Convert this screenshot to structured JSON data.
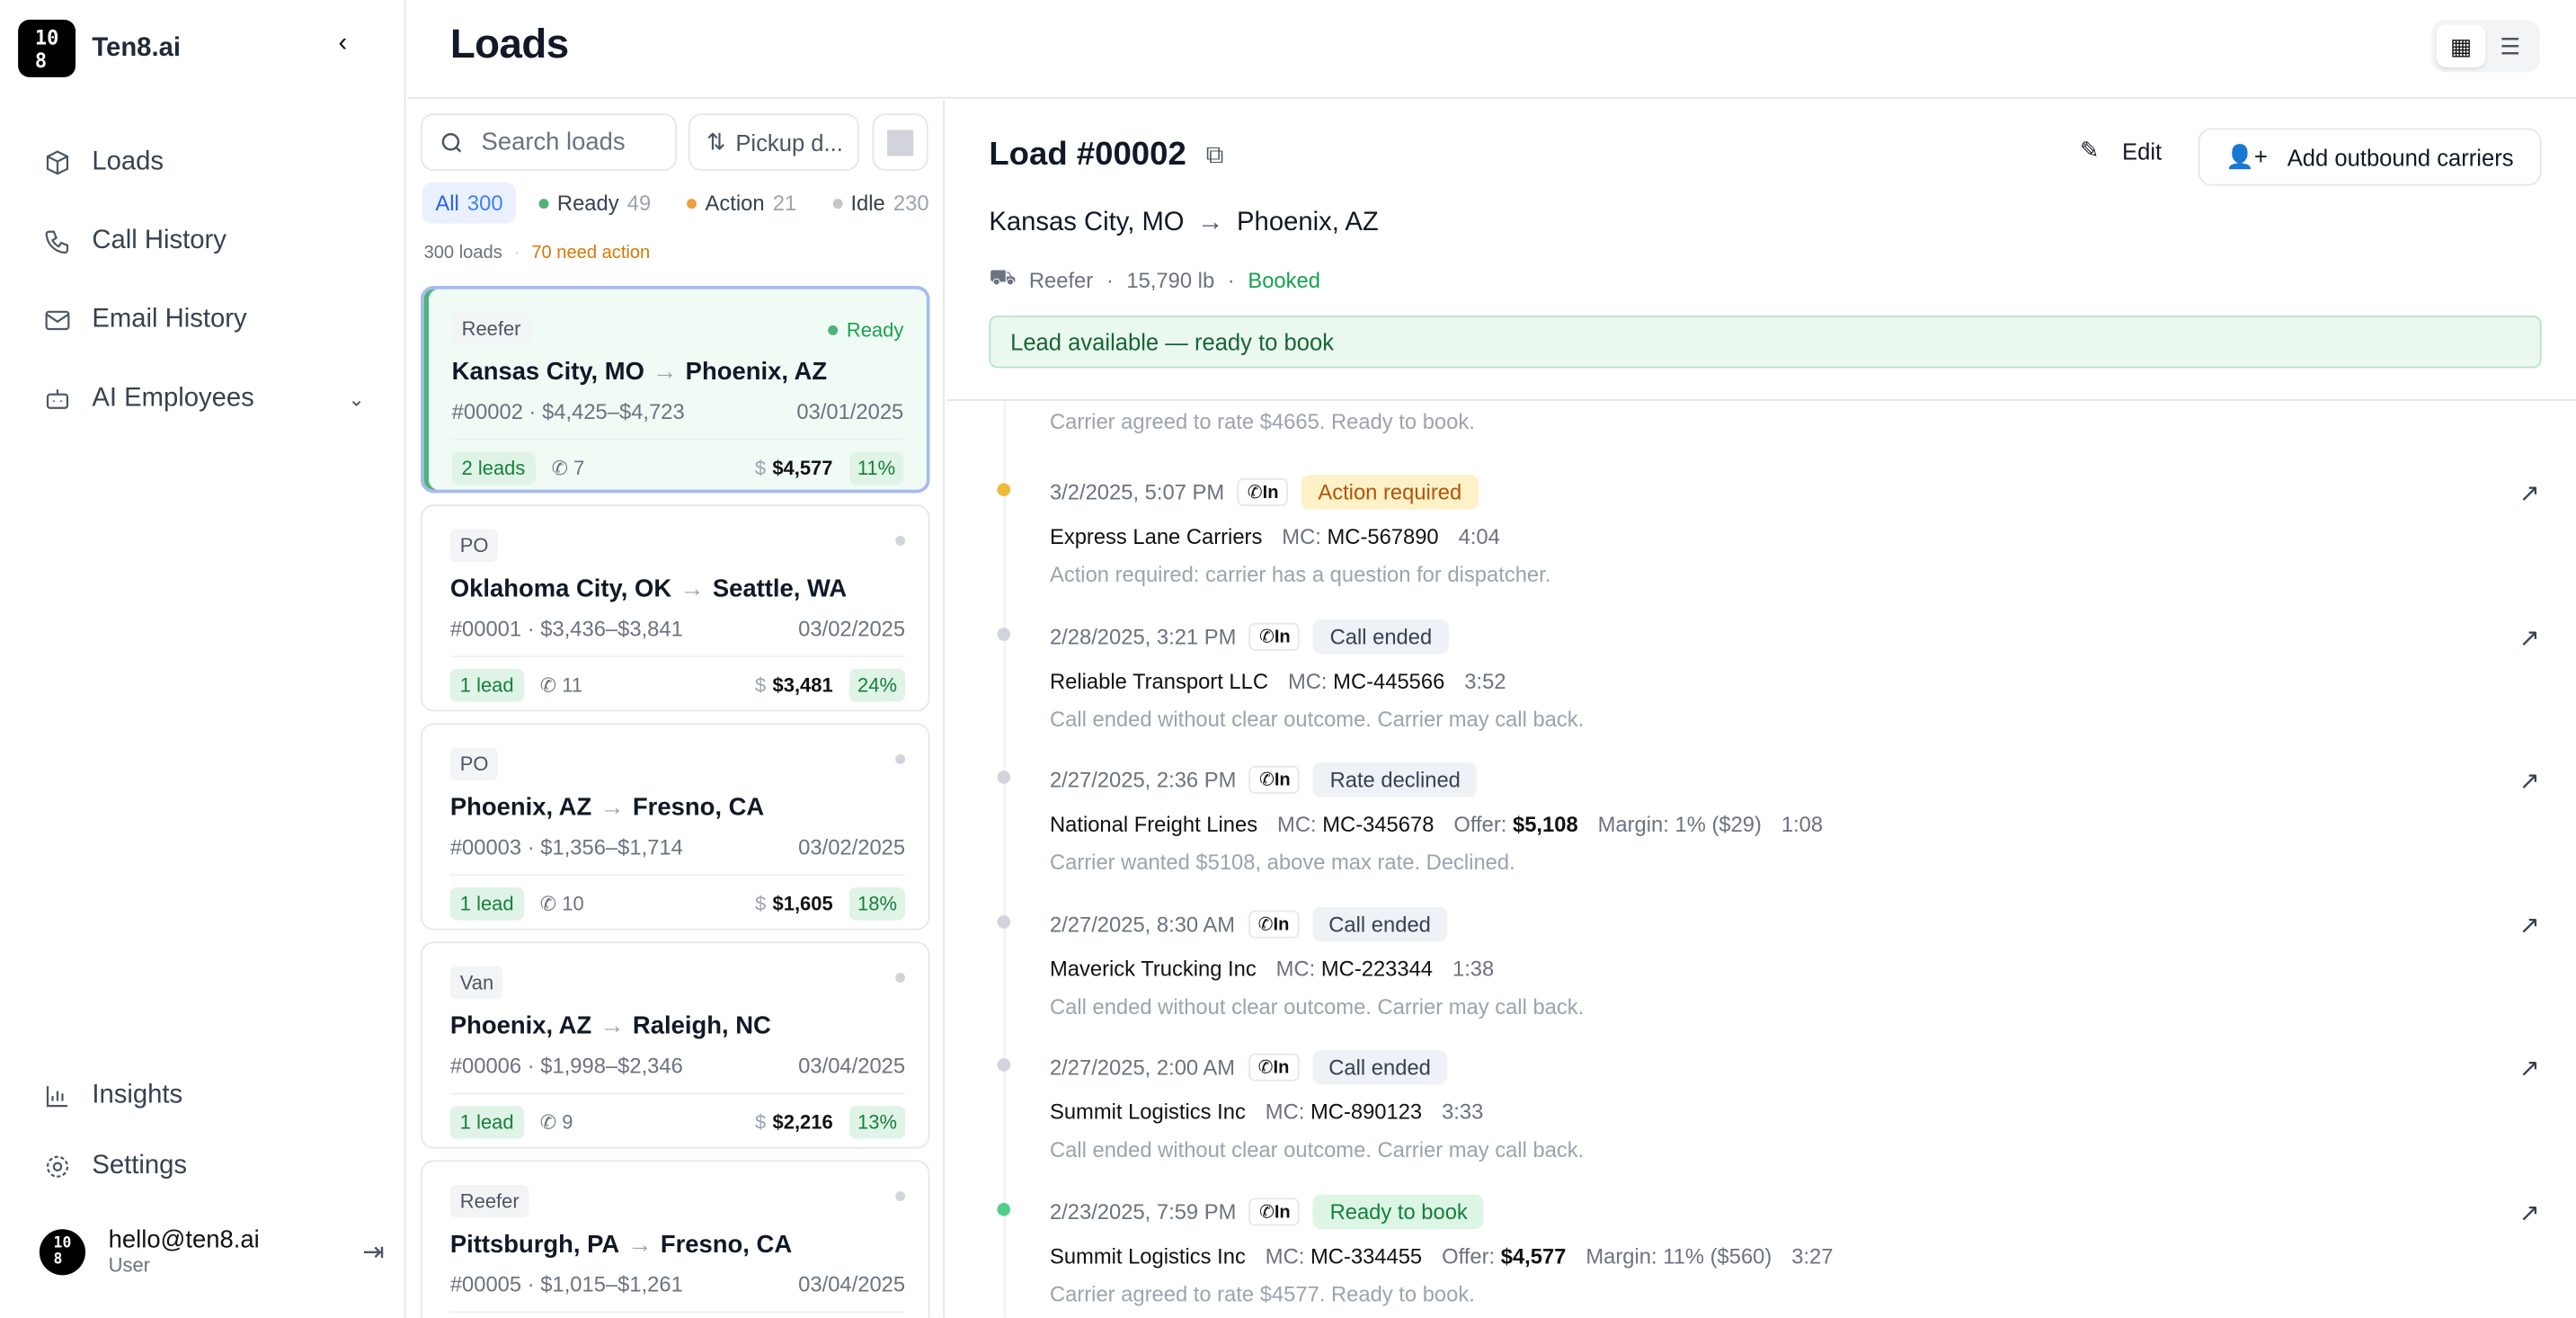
{
  "app": {
    "name": "Ten8.ai",
    "logo_text": "10 8"
  },
  "nav": [
    {
      "label": "Loads",
      "icon": "box-icon"
    },
    {
      "label": "Call History",
      "icon": "phone-icon"
    },
    {
      "label": "Email History",
      "icon": "mail-icon"
    },
    {
      "label": "AI Employees",
      "icon": "bot-icon"
    }
  ],
  "nav_bottom": [
    {
      "label": "Insights",
      "icon": "chart-icon"
    },
    {
      "label": "Settings",
      "icon": "gear-icon"
    }
  ],
  "user": {
    "email": "hello@ten8.ai",
    "role": "User"
  },
  "page": {
    "title": "Loads"
  },
  "list": {
    "search_placeholder": "Search loads",
    "sort_label": "Pickup d...",
    "filters": [
      {
        "label": "All",
        "count": "300",
        "color": ""
      },
      {
        "label": "Ready",
        "count": "49",
        "color": "#4fb27a"
      },
      {
        "label": "Action",
        "count": "21",
        "color": "#e9a23b"
      },
      {
        "label": "Idle",
        "count": "230",
        "color": "#c4c6cb"
      }
    ],
    "summary": {
      "total": "300 loads",
      "sep": "·",
      "action": "70 need action"
    },
    "cards": [
      {
        "type": "Reefer",
        "status": "Ready",
        "origin": "Kansas City, MO",
        "dest": "Phoenix, AZ",
        "id": "#00002",
        "range": "$4,425–$4,723",
        "date": "03/01/2025",
        "leads": "2 leads",
        "calls": "7",
        "price": "$4,577",
        "pct": "11%"
      },
      {
        "type": "PO",
        "status": "",
        "origin": "Oklahoma City, OK",
        "dest": "Seattle, WA",
        "id": "#00001",
        "range": "$3,436–$3,841",
        "date": "03/02/2025",
        "leads": "1 lead",
        "calls": "11",
        "price": "$3,481",
        "pct": "24%"
      },
      {
        "type": "PO",
        "status": "",
        "origin": "Phoenix, AZ",
        "dest": "Fresno, CA",
        "id": "#00003",
        "range": "$1,356–$1,714",
        "date": "03/02/2025",
        "leads": "1 lead",
        "calls": "10",
        "price": "$1,605",
        "pct": "18%"
      },
      {
        "type": "Van",
        "status": "",
        "origin": "Phoenix, AZ",
        "dest": "Raleigh, NC",
        "id": "#00006",
        "range": "$1,998–$2,346",
        "date": "03/04/2025",
        "leads": "1 lead",
        "calls": "9",
        "price": "$2,216",
        "pct": "13%"
      },
      {
        "type": "Reefer",
        "status": "",
        "origin": "Pittsburgh, PA",
        "dest": "Fresno, CA",
        "id": "#00005",
        "range": "$1,015–$1,261",
        "date": "03/04/2025",
        "leads": "",
        "calls": "",
        "price": "",
        "pct": ""
      }
    ]
  },
  "detail": {
    "title": "Load #00002",
    "edit": "Edit",
    "add_carriers": "Add outbound carriers",
    "origin": "Kansas City, MO",
    "dest": "Phoenix, AZ",
    "equipment": "Reefer",
    "weight": "15,790 lb",
    "status": "Booked",
    "banner": "Lead available — ready to book",
    "timeline": [
      {
        "time": "",
        "dir": "",
        "badge": "",
        "carrier": "",
        "mc": "",
        "offer": "",
        "margin": "",
        "dur": "",
        "note": "Carrier agreed to rate $4665. Ready to book.",
        "dot": ""
      },
      {
        "time": "3/2/2025, 5:07 PM",
        "dir": "In",
        "badge": "Action required",
        "badge_bg": "#fdf1c7",
        "badge_fg": "#b45309",
        "carrier": "Express Lane Carriers",
        "mc": "MC-567890",
        "offer": "",
        "margin": "",
        "dur": "4:04",
        "note": "Action required: carrier has a question for dispatcher.",
        "dot": "#f0b93a"
      },
      {
        "time": "2/28/2025, 3:21 PM",
        "dir": "In",
        "badge": "Call ended",
        "badge_bg": "#eef1f6",
        "badge_fg": "#374151",
        "carrier": "Reliable Transport LLC",
        "mc": "MC-445566",
        "offer": "",
        "margin": "",
        "dur": "3:52",
        "note": "Call ended without clear outcome. Carrier may call back.",
        "dot": "#d1d5db"
      },
      {
        "time": "2/27/2025, 2:36 PM",
        "dir": "In",
        "badge": "Rate declined",
        "badge_bg": "#eef1f6",
        "badge_fg": "#374151",
        "carrier": "National Freight Lines",
        "mc": "MC-345678",
        "offer": "$5,108",
        "margin": "1% ($29)",
        "dur": "1:08",
        "note": "Carrier wanted $5108, above max rate. Declined.",
        "dot": "#d1d5db"
      },
      {
        "time": "2/27/2025, 8:30 AM",
        "dir": "In",
        "badge": "Call ended",
        "badge_bg": "#eef1f6",
        "badge_fg": "#374151",
        "carrier": "Maverick Trucking Inc",
        "mc": "MC-223344",
        "offer": "",
        "margin": "",
        "dur": "1:38",
        "note": "Call ended without clear outcome. Carrier may call back.",
        "dot": "#d1d5db"
      },
      {
        "time": "2/27/2025, 2:00 AM",
        "dir": "In",
        "badge": "Call ended",
        "badge_bg": "#eef1f6",
        "badge_fg": "#374151",
        "carrier": "Summit Logistics Inc",
        "mc": "MC-890123",
        "offer": "",
        "margin": "",
        "dur": "3:33",
        "note": "Call ended without clear outcome. Carrier may call back.",
        "dot": "#d1d5db"
      },
      {
        "time": "2/23/2025, 7:59 PM",
        "dir": "In",
        "badge": "Ready to book",
        "badge_bg": "#dcf5e4",
        "badge_fg": "#15803d",
        "carrier": "Summit Logistics Inc",
        "mc": "MC-334455",
        "offer": "$4,577",
        "margin": "11% ($560)",
        "dur": "3:27",
        "note": "Carrier agreed to rate $4577. Ready to book.",
        "dot": "#4fcf88"
      }
    ],
    "labels": {
      "mc": "MC:",
      "offer": "Offer:",
      "margin": "Margin:"
    }
  }
}
